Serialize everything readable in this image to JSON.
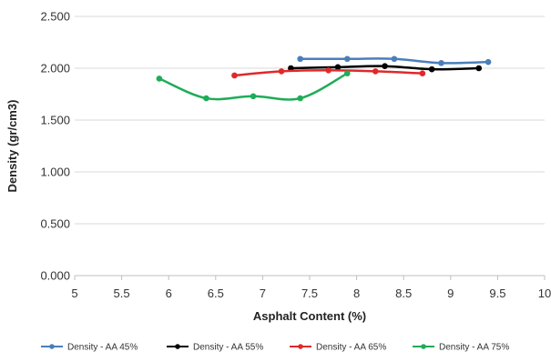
{
  "chart_data": {
    "type": "line",
    "title": "",
    "xlabel": "Asphalt Content (%)",
    "ylabel": "Density (gr/cm3)",
    "xlim": [
      5,
      10
    ],
    "ylim": [
      0,
      2.5
    ],
    "x_ticks": [
      "5",
      "5.5",
      "6",
      "6.5",
      "7",
      "7.5",
      "8",
      "8.5",
      "9",
      "9.5",
      "10"
    ],
    "y_ticks": [
      "0.000",
      "0.500",
      "1.000",
      "1.500",
      "2.000",
      "2.500"
    ],
    "grid": "horizontal",
    "legend_position": "bottom",
    "smooth": true,
    "series": [
      {
        "name": "Density - AA 45%",
        "color": "#4a7ebb",
        "x": [
          7.4,
          7.9,
          8.4,
          8.9,
          9.4
        ],
        "y": [
          2.09,
          2.09,
          2.09,
          2.05,
          2.06
        ]
      },
      {
        "name": "Density - AA 55%",
        "color": "#000000",
        "x": [
          7.3,
          7.8,
          8.3,
          8.8,
          9.3
        ],
        "y": [
          2.0,
          2.01,
          2.02,
          1.99,
          2.0
        ]
      },
      {
        "name": "Density - AA 65%",
        "color": "#e0292b",
        "x": [
          6.7,
          7.2,
          7.7,
          8.2,
          8.7
        ],
        "y": [
          1.93,
          1.97,
          1.98,
          1.97,
          1.95
        ]
      },
      {
        "name": "Density - AA 75%",
        "color": "#1fac58",
        "x": [
          5.9,
          6.4,
          6.9,
          7.4,
          7.9
        ],
        "y": [
          1.9,
          1.71,
          1.73,
          1.71,
          1.95
        ]
      }
    ]
  }
}
